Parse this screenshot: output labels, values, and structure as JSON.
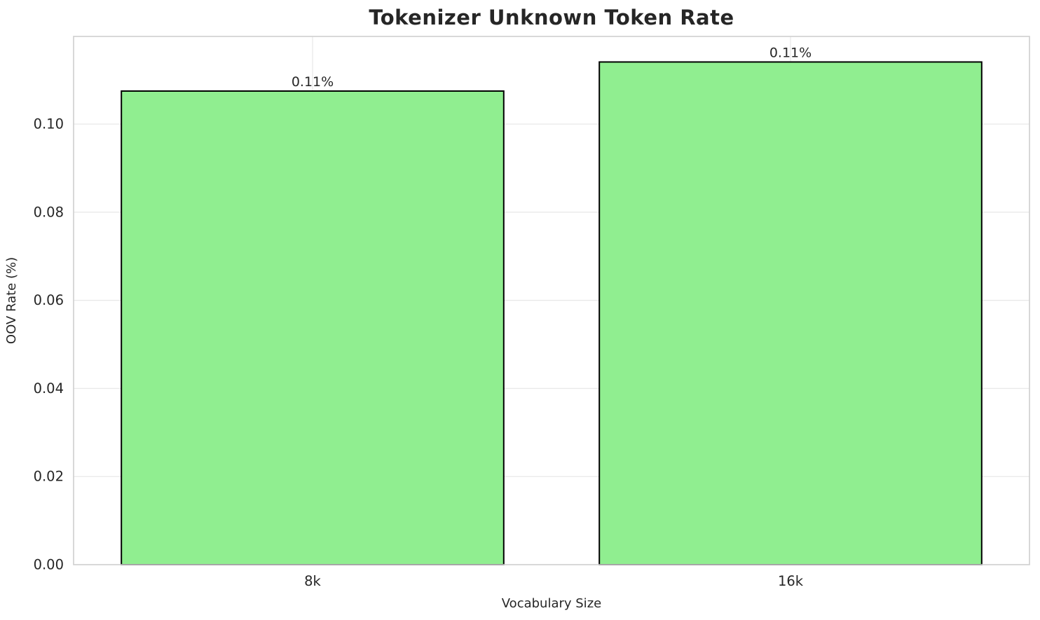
{
  "chart_data": {
    "type": "bar",
    "title": "Tokenizer Unknown Token Rate",
    "xlabel": "Vocabulary Size",
    "ylabel": "OOV Rate (%)",
    "categories": [
      "8k",
      "16k"
    ],
    "values": [
      0.1075,
      0.1141
    ],
    "bar_labels": [
      "0.11%",
      "0.11%"
    ],
    "yticks": [
      0,
      0.02,
      0.04,
      0.06,
      0.08,
      0.1
    ],
    "ytick_labels": [
      "0.00",
      "0.02",
      "0.04",
      "0.06",
      "0.08",
      "0.10"
    ],
    "ylim": [
      0,
      0.1199
    ],
    "bar_width_fraction": 0.8,
    "grid": true,
    "legend": "none",
    "colors": {
      "bar_fill": "#90EE90",
      "bar_edge": "#000000",
      "grid_line": "#e9e9e9",
      "spine": "#cfcfcf",
      "text": "#262626"
    }
  }
}
